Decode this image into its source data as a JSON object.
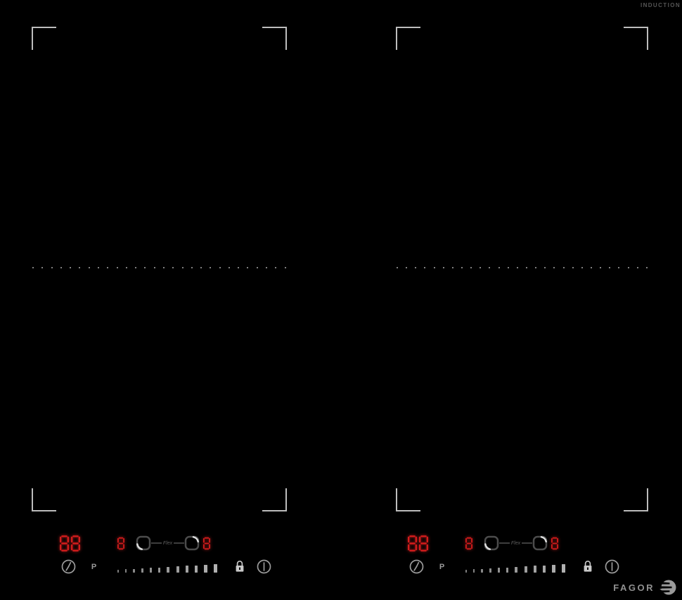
{
  "header": {
    "induction_label": "INDUCTION"
  },
  "zones": {
    "dots_per_line": 28
  },
  "panels": [
    {
      "side": "left",
      "timer_value": "88",
      "boost_label": "P",
      "flex_front_level": "8",
      "flex_rear_level": "8",
      "flex_label": "Flex",
      "slider_tick_count": 12
    },
    {
      "side": "right",
      "timer_value": "88",
      "boost_label": "P",
      "flex_front_level": "8",
      "flex_rear_level": "8",
      "flex_label": "Flex",
      "slider_tick_count": 12
    }
  ],
  "icons": {
    "timer": "clock-icon",
    "boost": "p-circle-icon",
    "pan_zones": "pan-square-icon",
    "lock": "padlock-icon",
    "power": "power-icon",
    "brand": "fagor-swirl-icon"
  },
  "footer": {
    "brand": "FAGOR"
  },
  "colors": {
    "background": "#000000",
    "display_red": "#d41c1c",
    "bracket_gray": "#bdbdbd",
    "icon_gray": "#9b9b9b",
    "label_gray": "#555555"
  }
}
